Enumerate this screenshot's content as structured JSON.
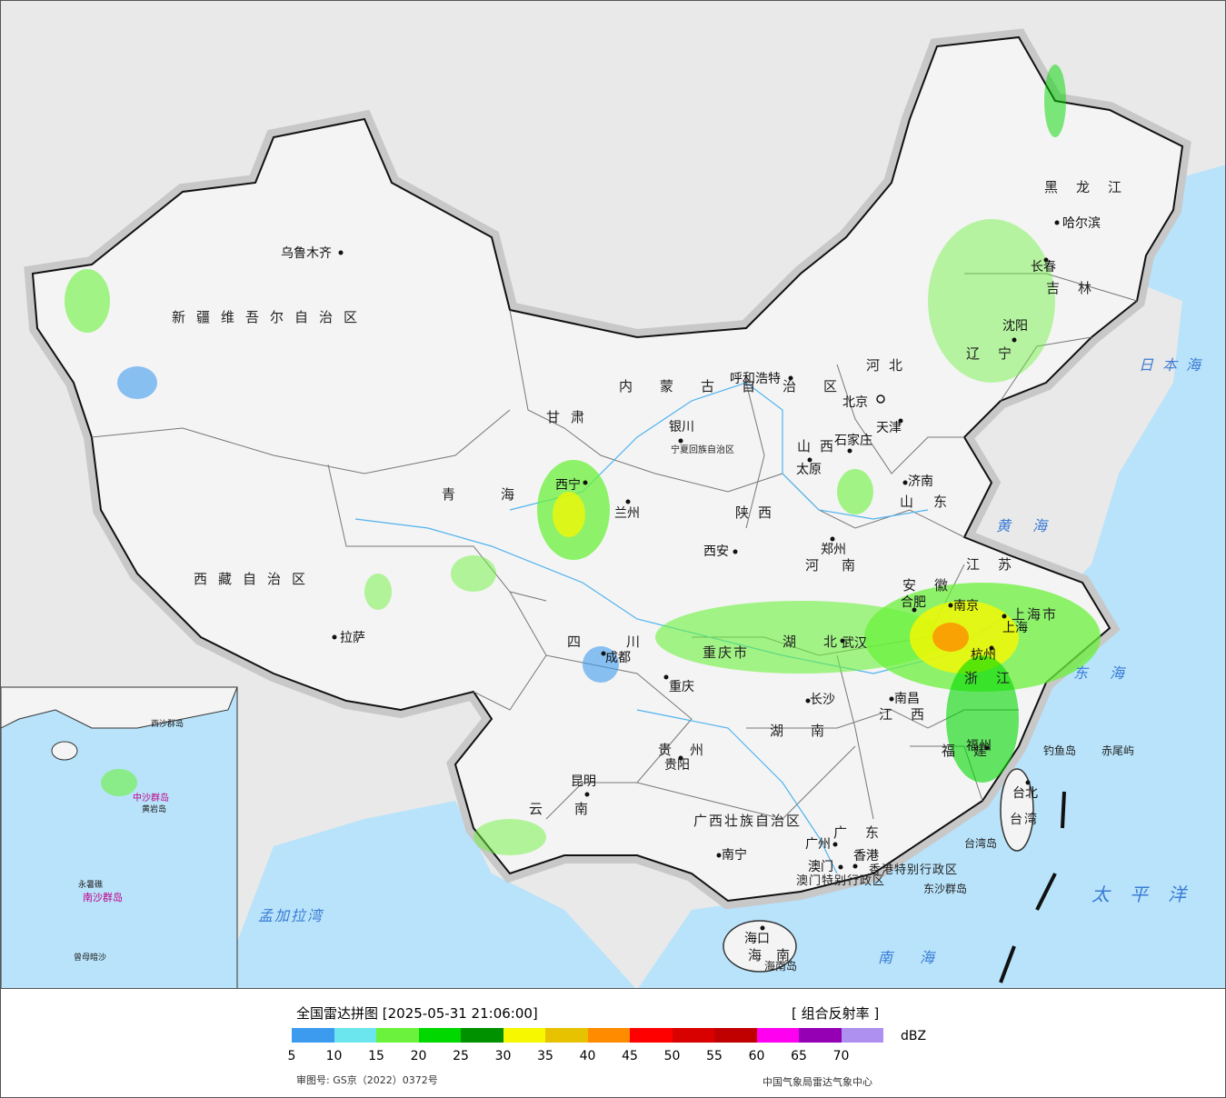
{
  "map": {
    "cities": [
      {
        "name": "乌鲁木齐"
      },
      {
        "name": "拉萨"
      },
      {
        "name": "西宁"
      },
      {
        "name": "兰州"
      },
      {
        "name": "银川"
      },
      {
        "name": "呼和浩特"
      },
      {
        "name": "北京"
      },
      {
        "name": "天津"
      },
      {
        "name": "石家庄"
      },
      {
        "name": "太原"
      },
      {
        "name": "济南"
      },
      {
        "name": "郑州"
      },
      {
        "name": "西安"
      },
      {
        "name": "成都"
      },
      {
        "name": "重庆"
      },
      {
        "name": "贵阳"
      },
      {
        "name": "昆明"
      },
      {
        "name": "南宁"
      },
      {
        "name": "广州"
      },
      {
        "name": "澳门"
      },
      {
        "name": "香港"
      },
      {
        "name": "海口"
      },
      {
        "name": "长沙"
      },
      {
        "name": "南昌"
      },
      {
        "name": "福州"
      },
      {
        "name": "杭州"
      },
      {
        "name": "上海"
      },
      {
        "name": "南京"
      },
      {
        "name": "合肥"
      },
      {
        "name": "武汉"
      },
      {
        "name": "沈阳"
      },
      {
        "name": "长春"
      },
      {
        "name": "哈尔滨"
      },
      {
        "name": "台北"
      }
    ],
    "provinces": [
      "新疆维吾尔自治区",
      "西藏自治区",
      "青海",
      "甘肃",
      "内蒙古自治区",
      "宁夏回族自治区",
      "四川",
      "云南",
      "贵州",
      "广西壮族自治区",
      "广东",
      "海南",
      "湖南",
      "湖北",
      "江西",
      "福建",
      "浙江",
      "江苏",
      "安徽",
      "山东",
      "河南",
      "陕西",
      "山西",
      "河北",
      "辽宁",
      "吉林",
      "黑龙江",
      "重庆市",
      "上海市",
      "台湾",
      "香港特别行政区",
      "澳门特别行政区"
    ],
    "seas": [
      "日本海",
      "黄海",
      "东海",
      "南海",
      "太平洋",
      "孟加拉湾"
    ],
    "islands": [
      "钓鱼岛",
      "赤尾屿",
      "台湾岛",
      "东沙群岛",
      "海南岛"
    ],
    "inset_labels": [
      "中沙群岛",
      "南沙群岛",
      "黄岩岛",
      "曾母暗沙",
      "永暑礁",
      "西沙群岛"
    ]
  },
  "legend": {
    "title": "全国雷达拼图 [2025-05-31 21:06:00]",
    "product": "[ 组合反射率 ]",
    "unit": "dBZ",
    "ticks": [
      "5",
      "10",
      "15",
      "20",
      "25",
      "30",
      "35",
      "40",
      "45",
      "50",
      "55",
      "60",
      "65",
      "70"
    ],
    "colors": [
      "#3d9bef",
      "#6be6ee",
      "#6bf23c",
      "#00d800",
      "#009100",
      "#f7f700",
      "#e6c200",
      "#ff8c00",
      "#ff0000",
      "#d90000",
      "#c00000",
      "#ff00f0",
      "#9600b4",
      "#ad90f0"
    ],
    "approval_no": "审图号: GS京（2022）0372号",
    "agency": "中国气象局雷达气象中心"
  }
}
